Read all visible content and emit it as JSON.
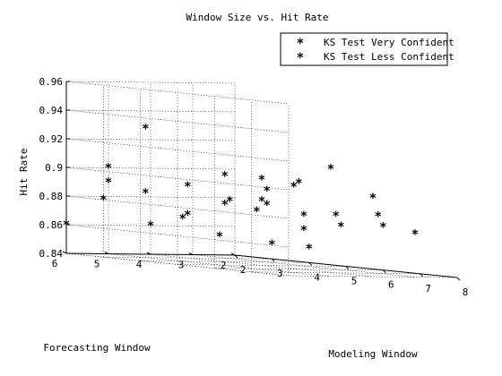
{
  "chart_data": {
    "type": "scatter",
    "title": "Window Size vs. Hit Rate",
    "xlabel": "Modeling Window",
    "ylabel": "Forecasting Window",
    "zlabel": "Hit Rate",
    "xlim": [
      2,
      8
    ],
    "ylim": [
      2,
      6
    ],
    "zlim": [
      0.84,
      0.96
    ],
    "xticks": [
      "2",
      "3",
      "4",
      "5",
      "6",
      "7",
      "8"
    ],
    "yticks": [
      "2",
      "3",
      "4",
      "5",
      "6"
    ],
    "zticks": [
      "0.84",
      "0.86",
      "0.88",
      "0.9",
      "0.92",
      "0.94",
      "0.96"
    ],
    "grid": true,
    "legend_position": "top-right",
    "marker": "*",
    "series": [
      {
        "name": "KS Test Very Confident",
        "color": "#0000ff",
        "points": [
          {
            "x": 2,
            "y": 5,
            "z": 0.9
          },
          {
            "x": 3,
            "y": 5,
            "z": 0.93
          },
          {
            "x": 3,
            "y": 4,
            "z": 0.89
          },
          {
            "x": 4,
            "y": 4,
            "z": 0.9
          },
          {
            "x": 5,
            "y": 4,
            "z": 0.885
          },
          {
            "x": 5,
            "y": 3,
            "z": 0.865
          },
          {
            "x": 4,
            "y": 3,
            "z": 0.88
          }
        ]
      },
      {
        "name": "KS Test Less Confident",
        "color": "#ff0000",
        "points": [
          {
            "x": 2,
            "y": 6,
            "z": 0.86
          },
          {
            "x": 2,
            "y": 5,
            "z": 0.89
          },
          {
            "x": 2,
            "y": 4,
            "z": 0.86
          },
          {
            "x": 3,
            "y": 6,
            "z": 0.88
          },
          {
            "x": 3,
            "y": 5,
            "z": 0.885
          },
          {
            "x": 3,
            "y": 4,
            "z": 0.87
          },
          {
            "x": 3,
            "y": 3,
            "z": 0.88
          },
          {
            "x": 3,
            "y": 2,
            "z": 0.85
          },
          {
            "x": 4,
            "y": 5,
            "z": 0.87
          },
          {
            "x": 4,
            "y": 4,
            "z": 0.88
          },
          {
            "x": 4,
            "y": 3,
            "z": 0.89
          },
          {
            "x": 4,
            "y": 2,
            "z": 0.85
          },
          {
            "x": 5,
            "y": 5,
            "z": 0.86
          },
          {
            "x": 5,
            "y": 4,
            "z": 0.9
          },
          {
            "x": 5,
            "y": 3,
            "z": 0.875
          },
          {
            "x": 6,
            "y": 5,
            "z": 0.88
          },
          {
            "x": 6,
            "y": 4,
            "z": 0.9
          },
          {
            "x": 6,
            "y": 3,
            "z": 0.87
          },
          {
            "x": 6,
            "y": 2,
            "z": 0.87
          },
          {
            "x": 7,
            "y": 5,
            "z": 0.9
          },
          {
            "x": 7,
            "y": 4,
            "z": 0.88
          },
          {
            "x": 7,
            "y": 3,
            "z": 0.88
          },
          {
            "x": 8,
            "y": 5,
            "z": 0.915
          },
          {
            "x": 8,
            "y": 4,
            "z": 0.895
          },
          {
            "x": 8,
            "y": 3,
            "z": 0.87
          }
        ]
      }
    ]
  }
}
